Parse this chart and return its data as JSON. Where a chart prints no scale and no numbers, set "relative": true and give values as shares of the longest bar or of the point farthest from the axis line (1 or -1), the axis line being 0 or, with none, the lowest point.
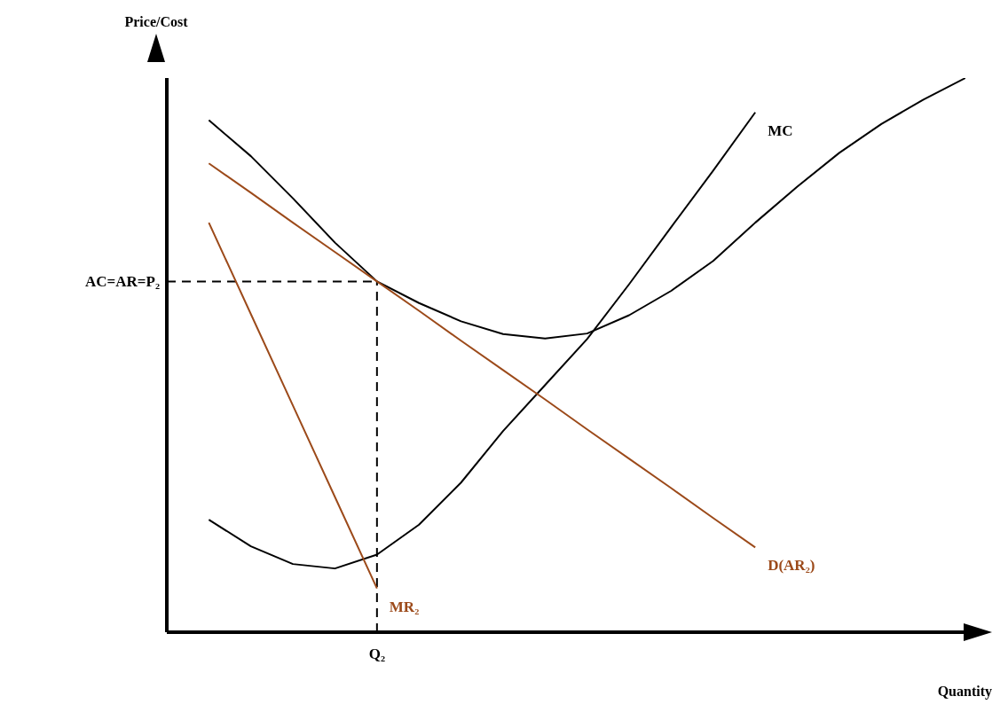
{
  "chart_data": {
    "type": "line",
    "relative": true,
    "xlabel": "Quantity",
    "ylabel": "Price/Cost",
    "grid": false,
    "legend": false,
    "marker": "none",
    "categories": [
      null,
      null,
      null,
      null,
      null,
      null,
      null,
      null,
      null,
      null,
      null,
      null,
      null,
      null,
      null,
      null,
      null,
      null,
      null,
      null
    ],
    "series": [
      {
        "color": "#000000",
        "values": [
          null,
          0.924,
          0.859,
          0.783,
          0.703,
          0.633,
          0.594,
          0.561,
          0.538,
          0.53,
          0.539,
          0.572,
          0.616,
          0.67,
          0.739,
          0.804,
          0.865,
          0.917,
          0.961,
          1.0
        ]
      },
      {
        "name": "MC",
        "color": "#000000",
        "values": [
          null,
          0.203,
          0.155,
          0.123,
          0.115,
          0.14,
          0.194,
          0.27,
          0.363,
          0.446,
          0.529,
          0.628,
          0.731,
          0.833,
          0.938,
          null,
          null,
          null,
          null,
          null
        ]
      },
      {
        "name": "D(AR₂)",
        "color": "#9c4a1a",
        "values": [
          null,
          0.846,
          0.793,
          0.739,
          0.686,
          0.633,
          0.58,
          0.526,
          0.473,
          0.42,
          0.366,
          0.313,
          0.26,
          0.206,
          0.153,
          null,
          null,
          null,
          null,
          null
        ]
      },
      {
        "name": "MR₂",
        "color": "#9c4a1a",
        "values": [
          null,
          0.739,
          0.574,
          0.409,
          0.244,
          0.079,
          null,
          null,
          null,
          null,
          null,
          null,
          null,
          null,
          null,
          null,
          null,
          null,
          null,
          null
        ]
      }
    ],
    "ref_lines": [
      {
        "axis": "x",
        "label": "Q₂",
        "line_style": "dashed",
        "color": "#000000"
      },
      {
        "axis": "y",
        "value": 0.633,
        "label": "AC=AR=P₂",
        "line_style": "dashed",
        "color": "#000000"
      }
    ]
  }
}
